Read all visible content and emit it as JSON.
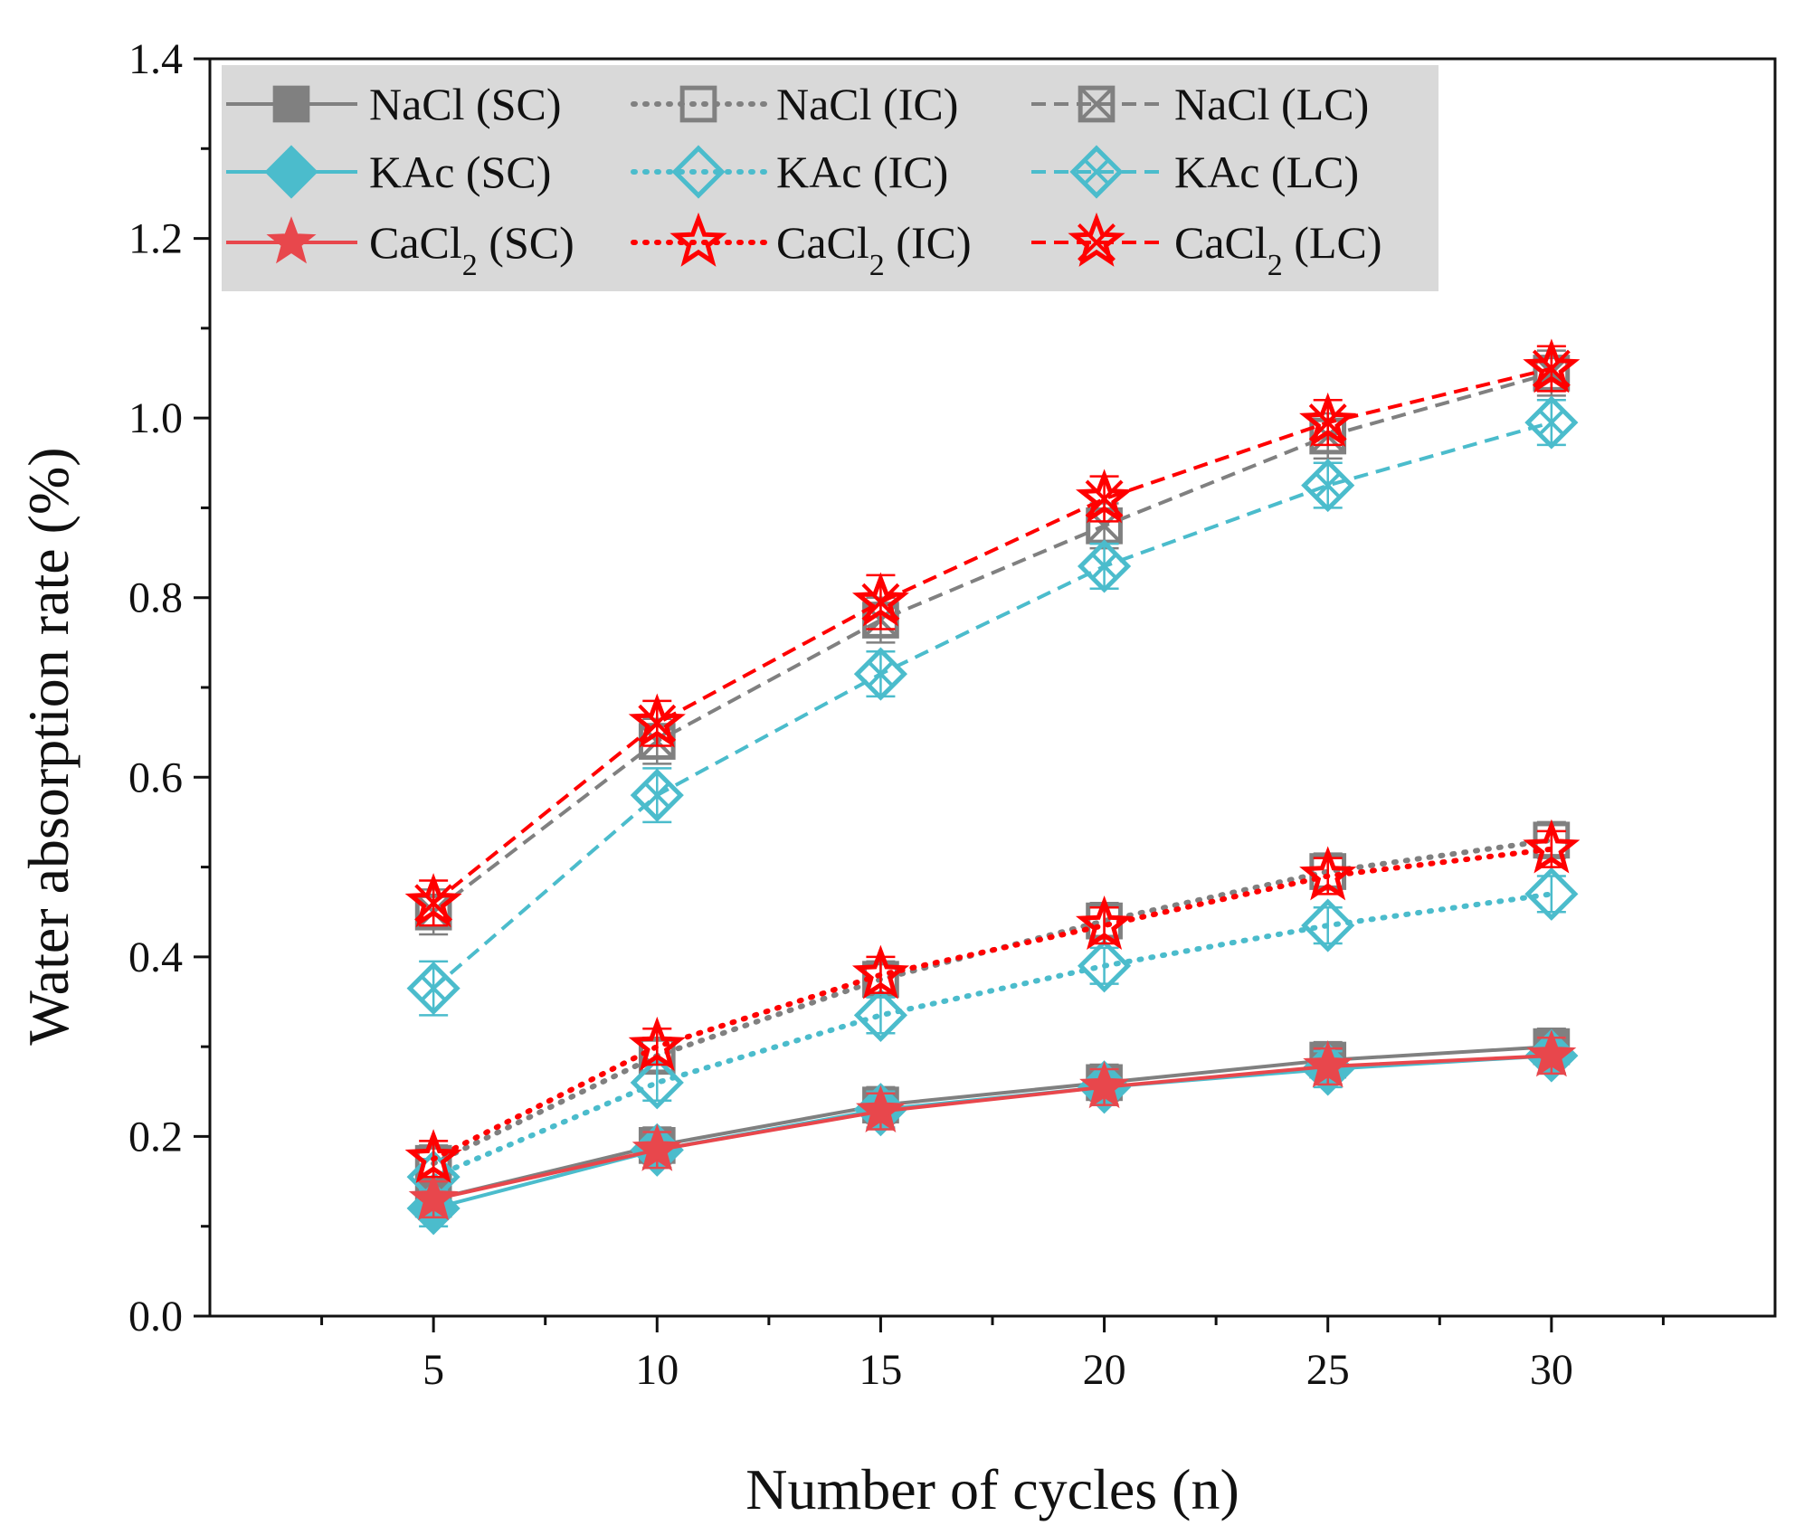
{
  "chart_data": {
    "type": "line",
    "title": "",
    "xlabel": "Number of cycles (n)",
    "ylabel": "Water absorption rate (%)",
    "x": [
      5,
      10,
      15,
      20,
      25,
      30
    ],
    "xlim": [
      0,
      35
    ],
    "ylim": [
      0.0,
      1.4
    ],
    "xticks": [
      5,
      10,
      15,
      20,
      25,
      30
    ],
    "yticks": [
      0.0,
      0.2,
      0.4,
      0.6,
      0.8,
      1.0,
      1.2,
      1.4
    ],
    "grid": false,
    "legend_position": "top-left",
    "series": [
      {
        "name": "NaCl (SC)",
        "name_main": "NaCl",
        "name_sub": "",
        "name_suffix": " (SC)",
        "values": [
          0.13,
          0.19,
          0.235,
          0.26,
          0.285,
          0.3
        ],
        "errors": [
          0.02,
          0.02,
          0.02,
          0.02,
          0.02,
          0.02
        ],
        "color": "#808080",
        "line": "solid",
        "marker": "square-filled"
      },
      {
        "name": "NaCl (IC)",
        "name_main": "NaCl",
        "name_sub": "",
        "name_suffix": " (IC)",
        "values": [
          0.17,
          0.29,
          0.375,
          0.44,
          0.495,
          0.53
        ],
        "errors": [
          0.02,
          0.02,
          0.02,
          0.02,
          0.02,
          0.02
        ],
        "color": "#808080",
        "line": "dotted",
        "marker": "square-open"
      },
      {
        "name": "NaCl (LC)",
        "name_main": "NaCl",
        "name_sub": "",
        "name_suffix": " (LC)",
        "values": [
          0.45,
          0.64,
          0.775,
          0.88,
          0.98,
          1.05
        ],
        "errors": [
          0.025,
          0.025,
          0.025,
          0.025,
          0.025,
          0.025
        ],
        "color": "#808080",
        "line": "dashed",
        "marker": "square-x"
      },
      {
        "name": "KAc (SC)",
        "name_main": "KAc",
        "name_sub": "",
        "name_suffix": " (SC)",
        "values": [
          0.12,
          0.185,
          0.23,
          0.255,
          0.275,
          0.29
        ],
        "errors": [
          0.02,
          0.02,
          0.02,
          0.02,
          0.02,
          0.02
        ],
        "color": "#4bbccc",
        "line": "solid",
        "marker": "diamond-filled"
      },
      {
        "name": "KAc (IC)",
        "name_main": "KAc",
        "name_sub": "",
        "name_suffix": " (IC)",
        "values": [
          0.155,
          0.26,
          0.335,
          0.39,
          0.435,
          0.47
        ],
        "errors": [
          0.02,
          0.02,
          0.02,
          0.02,
          0.02,
          0.02
        ],
        "color": "#4bbccc",
        "line": "dotted",
        "marker": "diamond-open"
      },
      {
        "name": "KAc (LC)",
        "name_main": "KAc",
        "name_sub": "",
        "name_suffix": " (LC)",
        "values": [
          0.365,
          0.58,
          0.715,
          0.835,
          0.925,
          0.995
        ],
        "errors": [
          0.03,
          0.03,
          0.025,
          0.025,
          0.025,
          0.025
        ],
        "color": "#4bbccc",
        "line": "dashed",
        "marker": "diamond-x"
      },
      {
        "name": "CaCl2 (SC)",
        "name_main": "CaCl",
        "name_sub": "2",
        "name_suffix": " (SC)",
        "values": [
          0.13,
          0.185,
          0.228,
          0.255,
          0.278,
          0.29
        ],
        "errors": [
          0.02,
          0.02,
          0.02,
          0.02,
          0.02,
          0.02
        ],
        "color": "#e8474c",
        "line": "solid",
        "marker": "star-filled"
      },
      {
        "name": "CaCl2 (IC)",
        "name_main": "CaCl",
        "name_sub": "2",
        "name_suffix": " (IC)",
        "values": [
          0.175,
          0.3,
          0.38,
          0.435,
          0.49,
          0.52
        ],
        "errors": [
          0.02,
          0.02,
          0.02,
          0.02,
          0.02,
          0.02
        ],
        "color": "#ff0000",
        "line": "dotted",
        "marker": "star-open"
      },
      {
        "name": "CaCl2 (LC)",
        "name_main": "CaCl",
        "name_sub": "2",
        "name_suffix": " (LC)",
        "values": [
          0.46,
          0.66,
          0.795,
          0.91,
          0.995,
          1.055
        ],
        "errors": [
          0.025,
          0.025,
          0.03,
          0.025,
          0.025,
          0.025
        ],
        "color": "#ff0000",
        "line": "dashed",
        "marker": "star-x"
      }
    ],
    "legend_order": [
      0,
      1,
      2,
      3,
      4,
      5,
      6,
      7,
      8
    ]
  }
}
